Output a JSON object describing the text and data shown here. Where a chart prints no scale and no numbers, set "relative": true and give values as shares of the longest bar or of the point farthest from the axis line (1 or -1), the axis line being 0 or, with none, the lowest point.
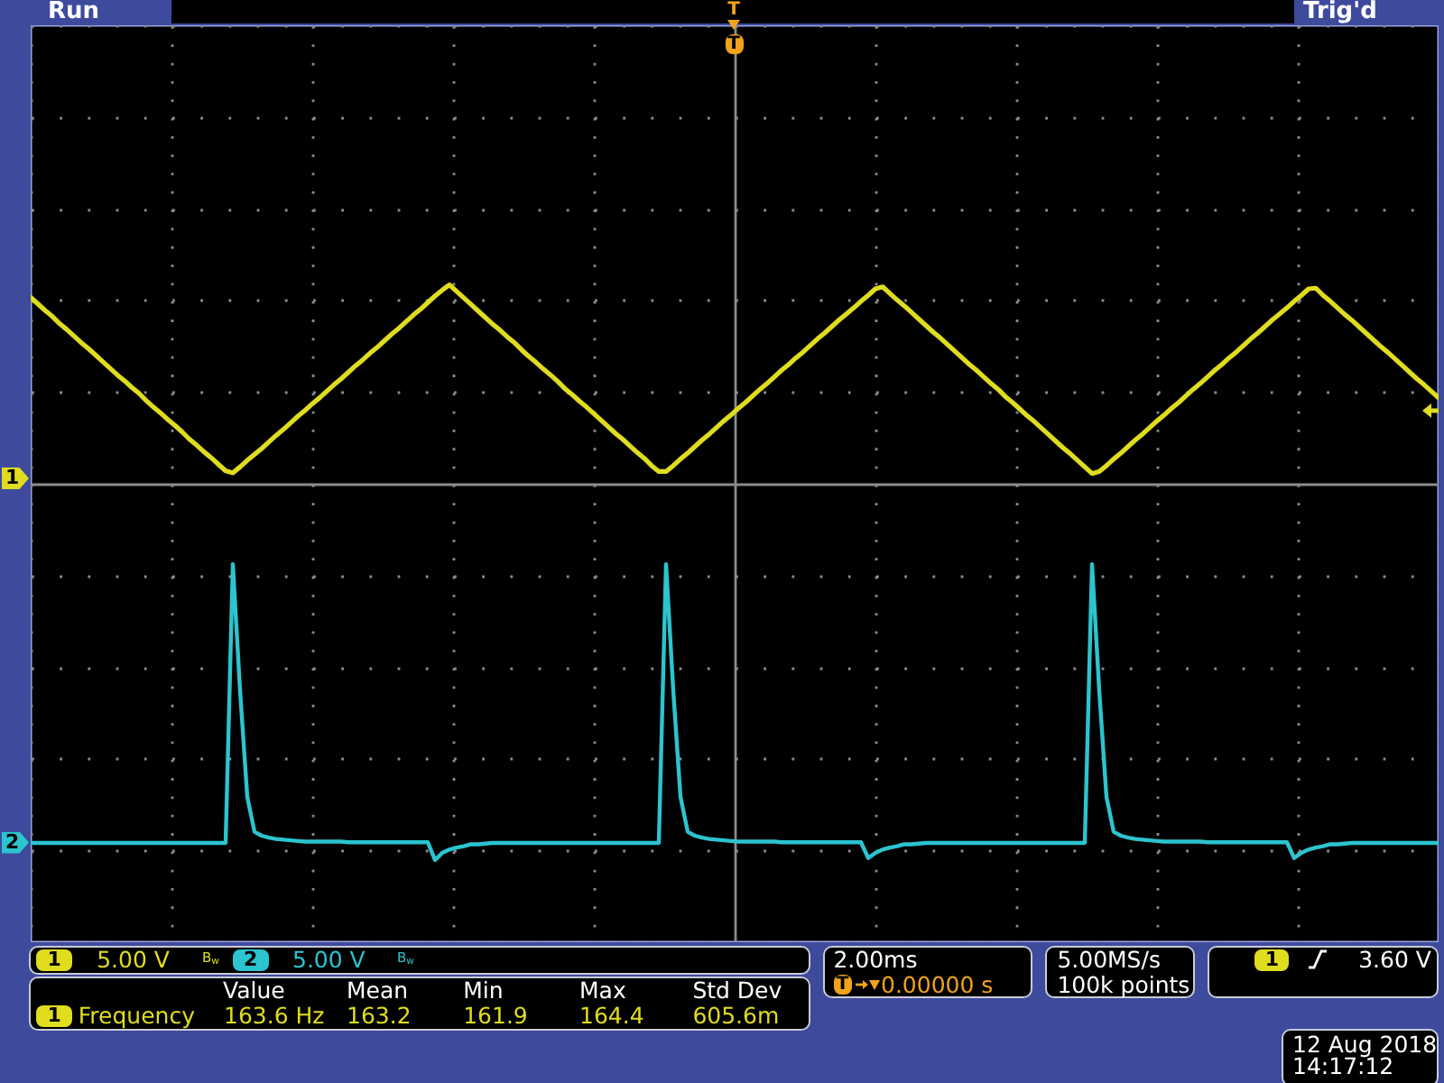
{
  "chart_data": {
    "type": "line",
    "relative": true,
    "grid": true,
    "categories": [
      null,
      null,
      null,
      null,
      null,
      null,
      null,
      null,
      null,
      null,
      null,
      null,
      null,
      null,
      null,
      null,
      null,
      null,
      null,
      null,
      null,
      null,
      null,
      null,
      null,
      null,
      null,
      null,
      null,
      null,
      null,
      null,
      null,
      null,
      null,
      null,
      null,
      null,
      null,
      null,
      null,
      null,
      null,
      null,
      null,
      null,
      null,
      null,
      null,
      null,
      null,
      null,
      null,
      null,
      null,
      null,
      null,
      null,
      null,
      null,
      null,
      null,
      null,
      null,
      null,
      null,
      null,
      null,
      null,
      null,
      null,
      null,
      null,
      null,
      null,
      null,
      null,
      null,
      null,
      null,
      null,
      null,
      null,
      null,
      null,
      null,
      null,
      null,
      null,
      null,
      null,
      null,
      null,
      null,
      null,
      null,
      null,
      null,
      null,
      null,
      null,
      null,
      null,
      null,
      null,
      null,
      null,
      null,
      null,
      null,
      null,
      null,
      null,
      null,
      null,
      null,
      null,
      null,
      null,
      null,
      null,
      null,
      null,
      null,
      null,
      null,
      null,
      null,
      null,
      null,
      null,
      null,
      null,
      null,
      null,
      null,
      null,
      null,
      null,
      null,
      null,
      null,
      null,
      null,
      null,
      null,
      null,
      null,
      null,
      null,
      null,
      null,
      null,
      null,
      null,
      null,
      null,
      null,
      null,
      null,
      null,
      null,
      null,
      null,
      null,
      null,
      null,
      null,
      null,
      null,
      null,
      null,
      null,
      null,
      null,
      null,
      null,
      null,
      null,
      null,
      null,
      null,
      null,
      null,
      null,
      null,
      null,
      null,
      null,
      null,
      null,
      null,
      null,
      null,
      null,
      null
    ],
    "series": [
      {
        "name": "1",
        "color": "#e0dc1e",
        "values": [
          0.981,
          0.971,
          0.961,
          0.952,
          0.941,
          0.932,
          0.922,
          0.912,
          0.903,
          0.893,
          0.883,
          0.873,
          0.863,
          0.854,
          0.844,
          0.835,
          0.824,
          0.814,
          0.805,
          0.795,
          0.786,
          0.776,
          0.765,
          0.756,
          0.746,
          0.737,
          0.727,
          0.717,
          0.714,
          0.723,
          0.733,
          0.742,
          0.751,
          0.761,
          0.771,
          0.78,
          0.79,
          0.8,
          0.809,
          0.819,
          0.828,
          0.838,
          0.848,
          0.857,
          0.867,
          0.877,
          0.886,
          0.896,
          0.905,
          0.915,
          0.925,
          0.934,
          0.944,
          0.954,
          0.963,
          0.973,
          0.983,
          0.992,
          1.0,
          0.99,
          0.98,
          0.97,
          0.96,
          0.95,
          0.94,
          0.931,
          0.921,
          0.912,
          0.901,
          0.891,
          0.882,
          0.872,
          0.863,
          0.853,
          0.842,
          0.833,
          0.823,
          0.814,
          0.804,
          0.794,
          0.784,
          0.774,
          0.765,
          0.755,
          0.745,
          0.736,
          0.725,
          0.716,
          0.716,
          0.725,
          0.735,
          0.744,
          0.754,
          0.764,
          0.773,
          0.783,
          0.793,
          0.802,
          0.812,
          0.821,
          0.831,
          0.841,
          0.85,
          0.86,
          0.87,
          0.879,
          0.889,
          0.898,
          0.908,
          0.918,
          0.927,
          0.937,
          0.947,
          0.956,
          0.965,
          0.975,
          0.984,
          0.994,
          0.997,
          0.987,
          0.977,
          0.968,
          0.958,
          0.948,
          0.938,
          0.928,
          0.919,
          0.909,
          0.899,
          0.889,
          0.879,
          0.87,
          0.86,
          0.85,
          0.841,
          0.83,
          0.821,
          0.811,
          0.801,
          0.792,
          0.782,
          0.772,
          0.762,
          0.752,
          0.743,
          0.733,
          0.723,
          0.713,
          0.716,
          0.725,
          0.735,
          0.744,
          0.754,
          0.764,
          0.773,
          0.783,
          0.793,
          0.802,
          0.812,
          0.821,
          0.831,
          0.841,
          0.85,
          0.86,
          0.87,
          0.879,
          0.889,
          0.898,
          0.908,
          0.918,
          0.927,
          0.937,
          0.947,
          0.956,
          0.965,
          0.975,
          0.984,
          0.994,
          0.995,
          0.984,
          0.975,
          0.965,
          0.955,
          0.946,
          0.936,
          0.926,
          0.916,
          0.906,
          0.897,
          0.887,
          0.877,
          0.867,
          0.857,
          0.848,
          0.838,
          0.828
        ]
      },
      {
        "name": "2",
        "color": "#2bc4cf",
        "values": [
          0.151,
          0.151,
          0.151,
          0.151,
          0.151,
          0.151,
          0.151,
          0.151,
          0.151,
          0.151,
          0.151,
          0.151,
          0.151,
          0.151,
          0.151,
          0.151,
          0.151,
          0.151,
          0.151,
          0.151,
          0.151,
          0.151,
          0.151,
          0.151,
          0.151,
          0.151,
          0.151,
          0.151,
          0.575,
          0.383,
          0.221,
          0.168,
          0.162,
          0.159,
          0.157,
          0.156,
          0.155,
          0.154,
          0.153,
          0.153,
          0.153,
          0.153,
          0.153,
          0.153,
          0.152,
          0.152,
          0.152,
          0.152,
          0.152,
          0.152,
          0.152,
          0.152,
          0.152,
          0.152,
          0.152,
          0.152,
          0.125,
          0.136,
          0.141,
          0.144,
          0.146,
          0.149,
          0.149,
          0.15,
          0.151,
          0.151,
          0.151,
          0.151,
          0.151,
          0.151,
          0.151,
          0.151,
          0.151,
          0.151,
          0.151,
          0.151,
          0.151,
          0.151,
          0.151,
          0.151,
          0.151,
          0.151,
          0.151,
          0.151,
          0.151,
          0.151,
          0.151,
          0.151,
          0.575,
          0.383,
          0.221,
          0.168,
          0.162,
          0.159,
          0.157,
          0.156,
          0.155,
          0.154,
          0.153,
          0.153,
          0.153,
          0.153,
          0.153,
          0.153,
          0.152,
          0.152,
          0.152,
          0.152,
          0.152,
          0.152,
          0.152,
          0.152,
          0.152,
          0.152,
          0.152,
          0.152,
          0.128,
          0.136,
          0.141,
          0.144,
          0.146,
          0.149,
          0.149,
          0.15,
          0.151,
          0.151,
          0.151,
          0.151,
          0.151,
          0.151,
          0.151,
          0.151,
          0.151,
          0.151,
          0.151,
          0.151,
          0.151,
          0.151,
          0.151,
          0.151,
          0.151,
          0.151,
          0.151,
          0.151,
          0.151,
          0.151,
          0.151,
          0.575,
          0.383,
          0.221,
          0.168,
          0.162,
          0.159,
          0.157,
          0.156,
          0.155,
          0.154,
          0.153,
          0.153,
          0.153,
          0.153,
          0.153,
          0.153,
          0.152,
          0.152,
          0.152,
          0.152,
          0.152,
          0.152,
          0.152,
          0.152,
          0.152,
          0.152,
          0.152,
          0.152,
          0.128,
          0.136,
          0.141,
          0.144,
          0.146,
          0.149,
          0.149,
          0.15,
          0.151,
          0.151,
          0.151,
          0.151,
          0.151,
          0.151,
          0.151,
          0.151,
          0.151,
          0.151,
          0.151,
          0.151,
          0.151
        ]
      }
    ],
    "annotations": [
      "Run",
      "Trig'd",
      "T",
      "T",
      "1",
      "5.00 V",
      "B$_{w}$",
      "2",
      "5.00 V",
      "B$_{w}$",
      "Value",
      "Mean",
      "Min",
      "Max",
      "Std Dev",
      "1",
      "Frequency",
      "163.6 Hz",
      "163.2",
      "161.9",
      "164.4",
      "605.6m",
      "2.00ms",
      "T",
      "0.00000 s",
      "5.00MS/s",
      "100k points",
      "1",
      "3.60 V",
      "12 Aug 2018",
      "14:17:12"
    ]
  }
}
